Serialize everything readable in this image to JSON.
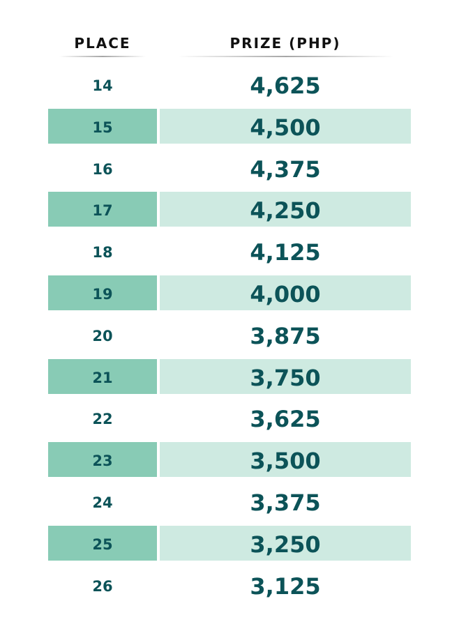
{
  "header": {
    "place_label": "PLACE",
    "prize_label": "PRIZE (PHP)"
  },
  "colors": {
    "text": "#0c5358",
    "place_shade": "#88cbb5",
    "prize_shade": "#ceeae1"
  },
  "rows": [
    {
      "place": "14",
      "prize": "4,625"
    },
    {
      "place": "15",
      "prize": "4,500"
    },
    {
      "place": "16",
      "prize": "4,375"
    },
    {
      "place": "17",
      "prize": "4,250"
    },
    {
      "place": "18",
      "prize": "4,125"
    },
    {
      "place": "19",
      "prize": "4,000"
    },
    {
      "place": "20",
      "prize": "3,875"
    },
    {
      "place": "21",
      "prize": "3,750"
    },
    {
      "place": "22",
      "prize": "3,625"
    },
    {
      "place": "23",
      "prize": "3,500"
    },
    {
      "place": "24",
      "prize": "3,375"
    },
    {
      "place": "25",
      "prize": "3,250"
    },
    {
      "place": "26",
      "prize": "3,125"
    }
  ]
}
